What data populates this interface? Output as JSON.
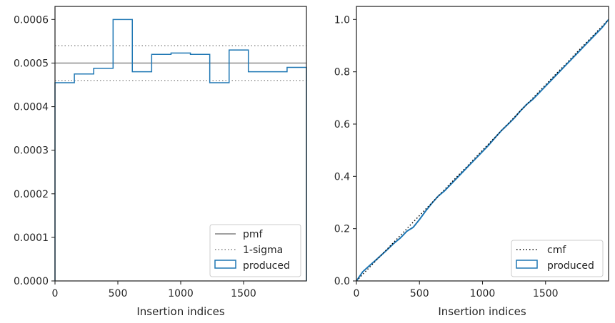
{
  "chart_data": [
    {
      "type": "step",
      "xlabel": "Insertion indices",
      "xlim": [
        0,
        2000
      ],
      "ylim": [
        0,
        0.00063
      ],
      "xticks": [
        0,
        500,
        1000,
        1500
      ],
      "xtick_labels": [
        "0",
        "500",
        "1000",
        "1500"
      ],
      "yticks": [
        0,
        0.0001,
        0.0002,
        0.0003,
        0.0004,
        0.0005,
        0.0006
      ],
      "ytick_labels": [
        "0.0000",
        "0.0001",
        "0.0002",
        "0.0003",
        "0.0004",
        "0.0005",
        "0.0006"
      ],
      "pmf": 0.0005,
      "sigma_band": [
        0.00046,
        0.00054
      ],
      "histogram": {
        "bin_edges": [
          0,
          154,
          308,
          462,
          615,
          769,
          923,
          1077,
          1231,
          1385,
          1538,
          1692,
          1846,
          2000
        ],
        "values": [
          0.000455,
          0.000475,
          0.000488,
          0.0006,
          0.00048,
          0.00052,
          0.000523,
          0.00052,
          0.000455,
          0.00053,
          0.00048,
          0.00048,
          0.00049
        ]
      },
      "legend": {
        "position": "lower right",
        "items": [
          {
            "label": "pmf",
            "style": "solid",
            "color": "#808080"
          },
          {
            "label": "1-sigma",
            "style": "dotted",
            "color": "#808080"
          },
          {
            "label": "produced",
            "style": "box",
            "color": "#1f77b4"
          }
        ]
      },
      "colors": {
        "produced": "#1f77b4",
        "reference": "#808080"
      }
    },
    {
      "type": "line",
      "xlabel": "Insertion indices",
      "xlim": [
        0,
        2000
      ],
      "ylim": [
        0,
        1.05
      ],
      "xticks": [
        0,
        500,
        1000,
        1500
      ],
      "xtick_labels": [
        "0",
        "500",
        "1000",
        "1500"
      ],
      "yticks": [
        0,
        0.2,
        0.4,
        0.6,
        0.8,
        1.0
      ],
      "ytick_labels": [
        "0.0",
        "0.2",
        "0.4",
        "0.6",
        "0.8",
        "1.0"
      ],
      "cmf": {
        "x": [
          0,
          2000
        ],
        "y": [
          0,
          1.0
        ]
      },
      "produced": {
        "x": [
          0,
          50,
          100,
          150,
          200,
          250,
          300,
          350,
          400,
          450,
          500,
          550,
          600,
          650,
          700,
          750,
          800,
          850,
          900,
          950,
          1000,
          1050,
          1100,
          1150,
          1200,
          1250,
          1300,
          1350,
          1400,
          1450,
          1500,
          1550,
          1600,
          1650,
          1700,
          1750,
          1800,
          1850,
          1900,
          1950,
          2000
        ],
        "y": [
          0,
          0.035,
          0.057,
          0.078,
          0.1,
          0.122,
          0.145,
          0.165,
          0.19,
          0.205,
          0.235,
          0.268,
          0.298,
          0.325,
          0.345,
          0.37,
          0.395,
          0.42,
          0.445,
          0.47,
          0.495,
          0.52,
          0.548,
          0.575,
          0.598,
          0.622,
          0.65,
          0.675,
          0.695,
          0.72,
          0.745,
          0.77,
          0.795,
          0.82,
          0.845,
          0.87,
          0.895,
          0.92,
          0.945,
          0.97,
          1.0
        ]
      },
      "legend": {
        "position": "lower right",
        "items": [
          {
            "label": "cmf",
            "style": "dotted",
            "color": "#000000"
          },
          {
            "label": "produced",
            "style": "box",
            "color": "#1f77b4"
          }
        ]
      },
      "colors": {
        "produced": "#1f77b4",
        "reference": "#000000"
      }
    }
  ]
}
